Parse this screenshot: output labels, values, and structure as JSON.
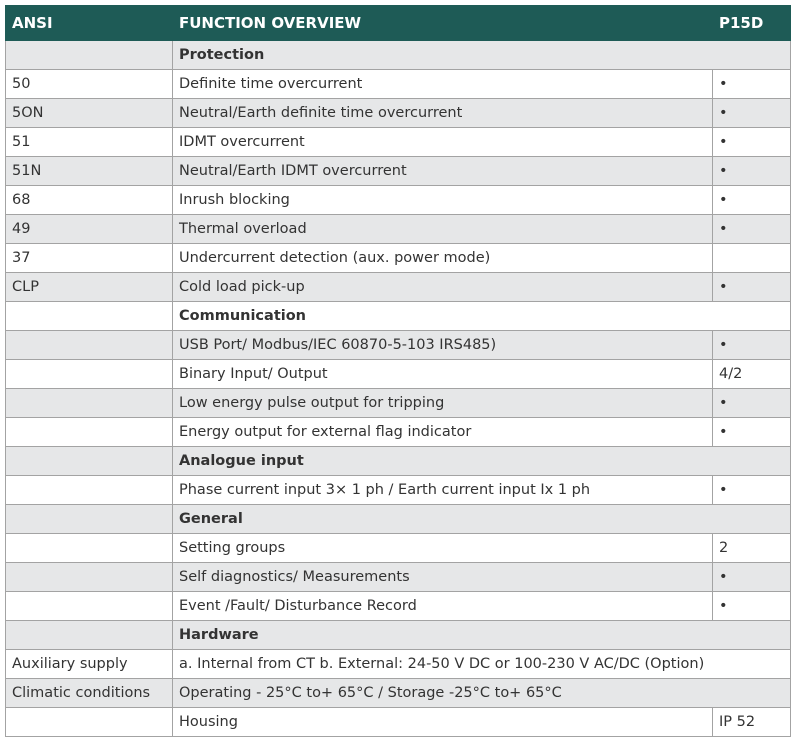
{
  "table": {
    "header": [
      "ANSI",
      "FUNCTION OVERVIEW",
      "P15D"
    ],
    "rows": [
      {
        "section": "Protection"
      },
      {
        "ansi": "50",
        "function": "Definite time overcurrent",
        "p15d": "•"
      },
      {
        "ansi": "5ON",
        "function": "Neutral/Earth definite time overcurrent",
        "p15d": "•"
      },
      {
        "ansi": "51",
        "function": "IDMT overcurrent",
        "p15d": "•"
      },
      {
        "ansi": "51N",
        "function": "Neutral/Earth IDMT overcurrent",
        "p15d": "•"
      },
      {
        "ansi": "68",
        "function": "Inrush blocking",
        "p15d": "•"
      },
      {
        "ansi": "49",
        "function": "Thermal overload",
        "p15d": "•"
      },
      {
        "ansi": "37",
        "function": "Undercurrent detection (aux. power mode)",
        "p15d": null
      },
      {
        "ansi": "CLP",
        "function": "Cold load pick-up",
        "p15d": "•"
      },
      {
        "section": "Communication"
      },
      {
        "ansi": null,
        "function": "USB Port/ Modbus/IEC 60870-5-103 IRS485)",
        "p15d": "•"
      },
      {
        "ansi": null,
        "function": "Binary Input/ Output",
        "p15d": "4/2"
      },
      {
        "ansi": null,
        "function": "Low energy pulse output for tripping",
        "p15d": "•"
      },
      {
        "ansi": null,
        "function": "Energy output for external flag indicator",
        "p15d": "•"
      },
      {
        "section": "Analogue input"
      },
      {
        "ansi": null,
        "function": "Phase current input 3× 1 ph / Earth current input Ix 1 ph",
        "p15d": "•"
      },
      {
        "section": "General"
      },
      {
        "ansi": null,
        "function": "Setting groups",
        "p15d": "2"
      },
      {
        "ansi": null,
        "function": "Self diagnostics/ Measurements",
        "p15d": "•"
      },
      {
        "ansi": null,
        "function": "Event /Fault/ Disturbance Record",
        "p15d": "•"
      },
      {
        "section": "Hardware"
      },
      {
        "ansi": "Auxiliary supply",
        "function": "a. Internal from CT b. External: 24-50 V DC or 100-230 V AC/DC (Option)"
      },
      {
        "ansi": "Climatic conditions",
        "function": "Operating - 25°C to+ 65°C / Storage -25°C to+ 65°C"
      },
      {
        "ansi": null,
        "function": "Housing",
        "p15d": "IP 52"
      }
    ]
  }
}
